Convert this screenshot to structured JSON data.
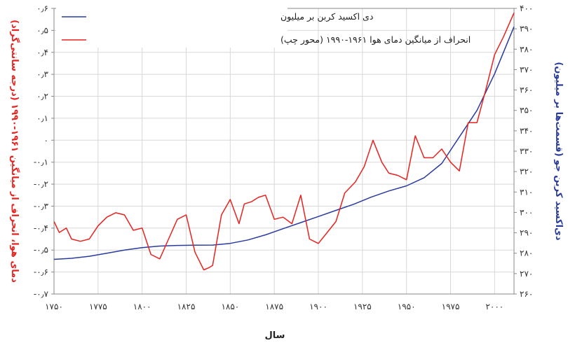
{
  "chart_data": {
    "type": "line",
    "xlabel": "سال",
    "ylabel_left": "دمای هوا، انحراف از میانگین ۱۹۶۱-۱۹۹۰ (درجه سانتی‌گراد)",
    "ylabel_right": "دی‌اکسید کربن جو (قسمت‌ها بر میلیون)",
    "colors": {
      "temp": "#e8221e",
      "co2": "#2a3b9e",
      "grid": "#d8d8d8",
      "left_axis_title": "#e8221e",
      "right_axis_title": "#2a3b9e"
    },
    "xlim": [
      1750,
      2011
    ],
    "ylim_left": [
      -0.7,
      0.6
    ],
    "ylim_right": [
      260,
      400
    ],
    "x_ticks": [
      1750,
      1775,
      1800,
      1825,
      1850,
      1875,
      1900,
      1925,
      1950,
      1975,
      2000
    ],
    "x_tick_labels": [
      "۱۷۵۰",
      "۱۷۷۵",
      "۱۸۰۰",
      "۱۸۲۵",
      "۱۸۵۰",
      "۱۸۷۵",
      "۱۹۰۰",
      "۱۹۲۵",
      "۱۹۵۰",
      "۱۹۷۵",
      "۲۰۰۰"
    ],
    "y_left_ticks": [
      -0.7,
      -0.6,
      -0.5,
      -0.4,
      -0.3,
      -0.2,
      -0.1,
      0,
      0.1,
      0.2,
      0.3,
      0.4,
      0.5,
      0.6
    ],
    "y_left_tick_labels": [
      "-۰٫۷",
      "-۰٫۶",
      "-۰٫۵",
      "-۰٫۴",
      "-۰٫۳",
      "-۰٫۲",
      "-۰٫۱",
      "۰",
      "۰٫۱",
      "۰٫۲",
      "۰٫۳",
      "۰٫۴",
      "۰٫۵",
      "۰٫۶"
    ],
    "y_right_ticks": [
      260,
      270,
      280,
      290,
      300,
      310,
      320,
      330,
      340,
      350,
      360,
      370,
      380,
      390,
      400
    ],
    "y_right_tick_labels": [
      "۲۶۰",
      "۲۷۰",
      "۲۸۰",
      "۲۹۰",
      "۳۰۰",
      "۳۱۰",
      "۳۲۰",
      "۳۳۰",
      "۳۴۰",
      "۳۵۰",
      "۳۶۰",
      "۳۷۰",
      "۳۸۰",
      "۳۹۰",
      "۴۰۰"
    ],
    "grid": true,
    "legend_position": "top-left",
    "series": [
      {
        "name": "دی اکسید کربن بر میلیون",
        "key": "co2",
        "axis": "right",
        "x": [
          1750,
          1760,
          1770,
          1780,
          1790,
          1800,
          1810,
          1820,
          1830,
          1840,
          1850,
          1860,
          1870,
          1880,
          1890,
          1900,
          1910,
          1920,
          1930,
          1940,
          1950,
          1960,
          1970,
          1980,
          1990,
          2000,
          2011
        ],
        "values": [
          277,
          277.5,
          278.5,
          280,
          281.5,
          282.7,
          283.5,
          283.8,
          283.9,
          284,
          284.8,
          286.5,
          289,
          292,
          295,
          298,
          301,
          304,
          307.5,
          310.5,
          313,
          317,
          324,
          337,
          350,
          368,
          391
        ]
      },
      {
        "name": "انحراف از میانگین دمای هوا ۱۹۶۱-۱۹۹۰ (محور چپ)",
        "key": "temp",
        "axis": "left",
        "x": [
          1750,
          1753,
          1757,
          1760,
          1765,
          1770,
          1775,
          1780,
          1785,
          1790,
          1795,
          1800,
          1805,
          1810,
          1815,
          1820,
          1825,
          1830,
          1835,
          1838,
          1840,
          1845,
          1850,
          1855,
          1858,
          1862,
          1866,
          1870,
          1875,
          1880,
          1885,
          1890,
          1895,
          1900,
          1905,
          1910,
          1915,
          1921,
          1926,
          1931,
          1936,
          1940,
          1945,
          1950,
          1955,
          1960,
          1965,
          1970,
          1975,
          1980,
          1985,
          1990,
          1995,
          2000,
          2005,
          2011
        ],
        "values": [
          -0.37,
          -0.42,
          -0.4,
          -0.45,
          -0.46,
          -0.45,
          -0.39,
          -0.35,
          -0.33,
          -0.34,
          -0.41,
          -0.4,
          -0.52,
          -0.54,
          -0.45,
          -0.36,
          -0.34,
          -0.51,
          -0.59,
          -0.58,
          -0.57,
          -0.34,
          -0.27,
          -0.38,
          -0.29,
          -0.28,
          -0.26,
          -0.25,
          -0.36,
          -0.35,
          -0.38,
          -0.25,
          -0.45,
          -0.47,
          -0.42,
          -0.37,
          -0.24,
          -0.19,
          -0.12,
          0,
          -0.1,
          -0.15,
          -0.16,
          -0.18,
          0.02,
          -0.08,
          -0.08,
          -0.04,
          -0.1,
          -0.14,
          0.08,
          0.08,
          0.23,
          0.39,
          0.47,
          0.58
        ]
      }
    ]
  }
}
